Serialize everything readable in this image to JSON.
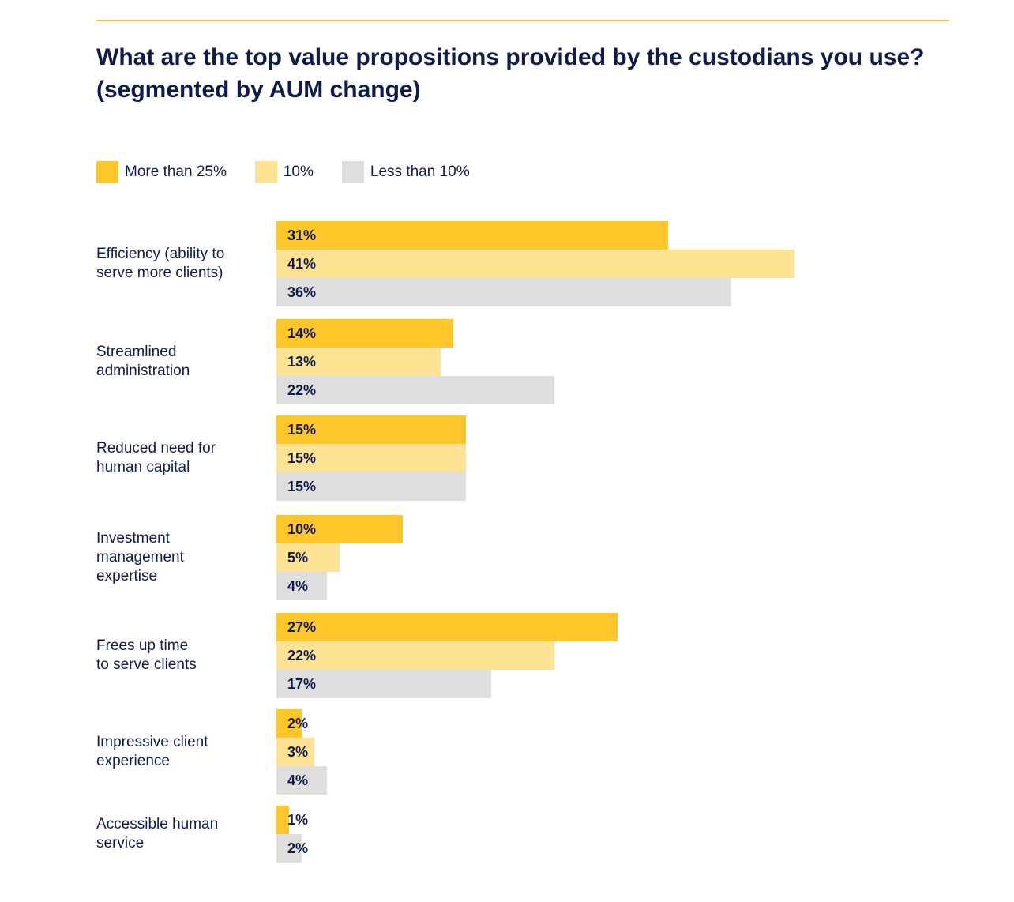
{
  "title_line1": "What are the top value propositions provided by the custodians you use?",
  "title_line2": "(segmented by AUM change)",
  "colors": {
    "accent_rule": "#ffc629",
    "text": "#0f1b4c"
  },
  "chart_data": {
    "type": "bar",
    "orientation": "horizontal",
    "title": "What are the top value propositions provided by the custodians you use? (segmented by AUM change)",
    "legend_position": "top-left",
    "grid": false,
    "value_format": "percent",
    "xlim": [
      0,
      42
    ],
    "categories": [
      [
        "Efficiency (ability to",
        "serve more clients)"
      ],
      [
        "Streamlined",
        "administration"
      ],
      [
        "Reduced need for",
        "human capital"
      ],
      [
        "Investment",
        "management",
        "expertise"
      ],
      [
        "Frees up time",
        "to serve clients"
      ],
      [
        "Impressive client",
        "experience"
      ],
      [
        "Accessible human",
        "service"
      ]
    ],
    "series": [
      {
        "name": "More than 25%",
        "color": "#ffc629",
        "values": [
          31,
          14,
          15,
          10,
          27,
          2,
          1
        ]
      },
      {
        "name": "10%",
        "color": "#fde294",
        "values": [
          41,
          13,
          15,
          5,
          22,
          3,
          null
        ]
      },
      {
        "name": "Less than 10%",
        "color": "#dedede",
        "values": [
          36,
          22,
          15,
          4,
          17,
          4,
          2
        ]
      }
    ]
  }
}
